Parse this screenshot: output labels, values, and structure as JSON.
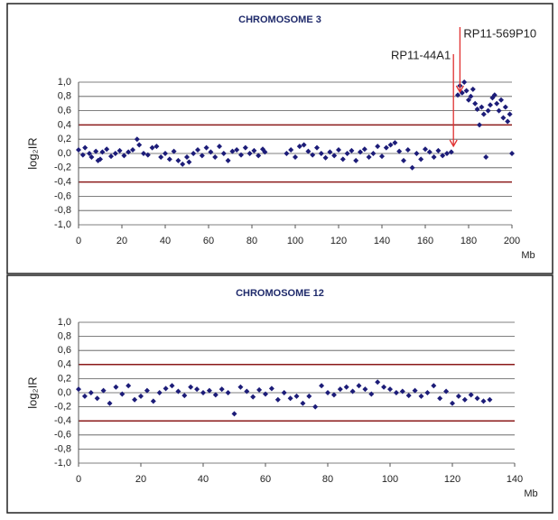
{
  "chart_data": [
    {
      "type": "scatter",
      "title": "CHROMOSOME 3",
      "xlabel": "Mb",
      "ylabel": "log₂IR",
      "color": "#1c1c78",
      "x": [
        0,
        2,
        3,
        5,
        6,
        8,
        9,
        10,
        11,
        13,
        15,
        17,
        19,
        21,
        23,
        25,
        27,
        28,
        30,
        32,
        34,
        36,
        38,
        40,
        42,
        44,
        46,
        48,
        50,
        51,
        53,
        55,
        57,
        59,
        61,
        63,
        65,
        67,
        69,
        71,
        73,
        75,
        77,
        79,
        81,
        83,
        85,
        86,
        96,
        98,
        100,
        102,
        104,
        106,
        108,
        110,
        112,
        114,
        116,
        118,
        120,
        122,
        124,
        126,
        128,
        130,
        132,
        134,
        136,
        138,
        140,
        142,
        144,
        146,
        148,
        150,
        152,
        154,
        156,
        158,
        160,
        162,
        164,
        166,
        168,
        170,
        172,
        175,
        176,
        177,
        178,
        179,
        180,
        181,
        182,
        183,
        184,
        185,
        186,
        187,
        188,
        189,
        190,
        191,
        192,
        193,
        194,
        195,
        196,
        197,
        198,
        199,
        200
      ],
      "values": [
        0.05,
        -0.02,
        0.08,
        0.0,
        -0.05,
        0.03,
        -0.1,
        -0.08,
        0.02,
        0.06,
        -0.04,
        0.0,
        0.04,
        -0.03,
        0.02,
        0.05,
        0.2,
        0.12,
        0.0,
        -0.02,
        0.08,
        0.1,
        -0.05,
        0.0,
        -0.08,
        0.03,
        -0.1,
        -0.15,
        -0.05,
        -0.12,
        0.0,
        0.05,
        -0.03,
        0.08,
        0.02,
        -0.05,
        0.1,
        0.0,
        -0.1,
        0.03,
        0.05,
        -0.02,
        0.08,
        0.0,
        0.04,
        -0.03,
        0.06,
        0.02,
        0.0,
        0.05,
        -0.05,
        0.1,
        0.12,
        0.03,
        -0.02,
        0.08,
        0.0,
        -0.06,
        0.02,
        -0.03,
        0.05,
        -0.08,
        0.0,
        0.04,
        -0.1,
        0.02,
        0.06,
        -0.05,
        0.0,
        0.1,
        -0.04,
        0.08,
        0.12,
        0.15,
        0.03,
        -0.1,
        0.05,
        -0.2,
        0.0,
        -0.08,
        0.06,
        0.02,
        -0.05,
        0.04,
        -0.03,
        0.0,
        0.02,
        0.82,
        0.95,
        0.85,
        1.0,
        0.88,
        0.75,
        0.8,
        0.9,
        0.7,
        0.62,
        0.4,
        0.65,
        0.55,
        -0.05,
        0.6,
        0.68,
        0.78,
        0.82,
        0.7,
        0.6,
        0.75,
        0.5,
        0.65,
        0.45,
        0.55,
        0.0
      ],
      "xlim": [
        0,
        200
      ],
      "xticks": [
        0,
        20,
        40,
        60,
        80,
        100,
        120,
        140,
        160,
        180,
        200
      ],
      "ylim": [
        -1,
        1
      ],
      "yticks": [
        {
          "value": 1,
          "label": "1,0"
        },
        {
          "value": 0.8,
          "label": "0,8"
        },
        {
          "value": 0.6,
          "label": "0,6"
        },
        {
          "value": 0.4,
          "label": "0,4"
        },
        {
          "value": 0.2,
          "label": "0,2"
        },
        {
          "value": 0,
          "label": "0,0"
        },
        {
          "value": -0.2,
          "label": "-0,2"
        },
        {
          "value": -0.4,
          "label": "-0,4"
        },
        {
          "value": -0.6,
          "label": "-0,6"
        },
        {
          "value": -0.8,
          "label": "-0,8"
        },
        {
          "value": -1,
          "label": "-1,0"
        }
      ],
      "grid": true,
      "threshold_lines": [
        0.4,
        -0.4
      ],
      "threshold_color": "#8b1a1a",
      "annotations": [
        {
          "text": "RP11-44A1",
          "x": 173
        },
        {
          "text": "RP11-569P10",
          "x": 176
        }
      ],
      "annotation_color": "#e03030"
    },
    {
      "type": "scatter",
      "title": "CHROMOSOME 12",
      "xlabel": "Mb",
      "ylabel": "log₂IR",
      "color": "#1c1c78",
      "x": [
        0,
        2,
        4,
        6,
        8,
        10,
        12,
        14,
        16,
        18,
        20,
        22,
        24,
        26,
        28,
        30,
        32,
        34,
        36,
        38,
        40,
        42,
        44,
        46,
        48,
        50,
        52,
        54,
        56,
        58,
        60,
        62,
        64,
        66,
        68,
        70,
        72,
        74,
        76,
        78,
        80,
        82,
        84,
        86,
        88,
        90,
        92,
        94,
        96,
        98,
        100,
        102,
        104,
        106,
        108,
        110,
        112,
        114,
        116,
        118,
        120,
        122,
        124,
        126,
        128,
        130,
        132
      ],
      "values": [
        0.05,
        -0.05,
        0.0,
        -0.08,
        0.03,
        -0.15,
        0.08,
        -0.02,
        0.1,
        -0.1,
        -0.05,
        0.03,
        -0.12,
        0.0,
        0.06,
        0.1,
        0.02,
        -0.04,
        0.08,
        0.05,
        0.0,
        0.03,
        -0.03,
        0.05,
        0.0,
        -0.3,
        0.08,
        0.02,
        -0.06,
        0.04,
        -0.02,
        0.06,
        -0.1,
        0.0,
        -0.08,
        -0.05,
        -0.15,
        -0.05,
        -0.2,
        0.1,
        0.0,
        -0.03,
        0.05,
        0.08,
        0.02,
        0.1,
        0.05,
        -0.02,
        0.15,
        0.08,
        0.05,
        0.0,
        0.02,
        -0.04,
        0.03,
        -0.05,
        0.0,
        0.1,
        -0.08,
        0.02,
        -0.15,
        -0.05,
        -0.1,
        -0.03,
        -0.08,
        -0.12,
        -0.1
      ],
      "xlim": [
        0,
        140
      ],
      "xticks": [
        0,
        20,
        40,
        60,
        80,
        100,
        120,
        140
      ],
      "ylim": [
        -1,
        1
      ],
      "yticks": [
        {
          "value": 1,
          "label": "1,0"
        },
        {
          "value": 0.8,
          "label": "0,8"
        },
        {
          "value": 0.6,
          "label": "0,6"
        },
        {
          "value": 0.4,
          "label": "0,4"
        },
        {
          "value": 0.2,
          "label": "0,2"
        },
        {
          "value": 0,
          "label": "0,0"
        },
        {
          "value": -0.2,
          "label": "-0,2"
        },
        {
          "value": -0.4,
          "label": "-0,4"
        },
        {
          "value": -0.6,
          "label": "-0,6"
        },
        {
          "value": -0.8,
          "label": "-0,8"
        },
        {
          "value": -1,
          "label": "-1,0"
        }
      ],
      "grid": true,
      "threshold_lines": [
        0.4,
        -0.4
      ],
      "threshold_color": "#8b1a1a"
    }
  ]
}
